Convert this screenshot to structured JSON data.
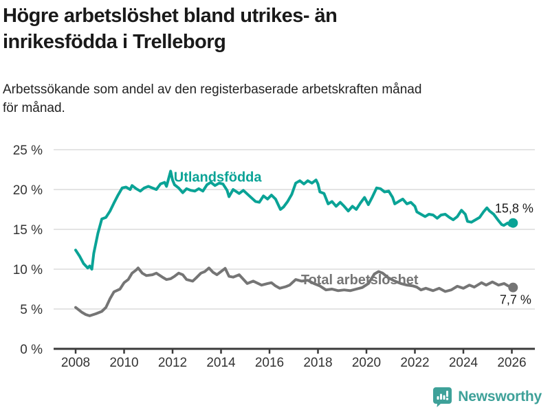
{
  "header": {
    "title_lines": [
      "Högre arbetslöshet bland utrikes- än",
      "inrikesfödda i Trelleborg"
    ],
    "subtitle_lines": [
      "Arbetssökande som andel av den registerbaserade arbetskraften månad",
      "för månad."
    ]
  },
  "footer": {
    "brand": "Newsworthy",
    "logo_icon": "bar-chart-speech-bubble"
  },
  "colors": {
    "foreign_born": "#0AA396",
    "total": "#757575",
    "grid": "#dcdcdc",
    "axis": "#3b3b3b",
    "tick_text": "#333333",
    "annotation_text": "#1a1a1a",
    "brand": "#3EA199"
  },
  "chart_data": {
    "type": "line",
    "title": "Högre arbetslöshet bland utrikes- än inrikesfödda i Trelleborg",
    "subtitle": "Arbetssökande som andel av den registerbaserade arbetskraften månad för månad.",
    "xlabel": "",
    "ylabel": "",
    "xlim": [
      2007.2,
      2026.9
    ],
    "ylim": [
      0,
      25
    ],
    "grid": "horizontal",
    "legend_position": "inline-labels",
    "y_ticks": [
      {
        "value": 25,
        "label": "25 %"
      },
      {
        "value": 20,
        "label": "20 %"
      },
      {
        "value": 15,
        "label": "15 %"
      },
      {
        "value": 10,
        "label": "10 %"
      },
      {
        "value": 5,
        "label": "5 %"
      },
      {
        "value": 0,
        "label": "0 %"
      }
    ],
    "x_ticks": [
      {
        "value": 2008,
        "label": "2008"
      },
      {
        "value": 2010,
        "label": "2010"
      },
      {
        "value": 2012,
        "label": "2012"
      },
      {
        "value": 2014,
        "label": "2014"
      },
      {
        "value": 2016,
        "label": "2016"
      },
      {
        "value": 2018,
        "label": "2018"
      },
      {
        "value": 2020,
        "label": "2020"
      },
      {
        "value": 2022,
        "label": "2022"
      },
      {
        "value": 2024,
        "label": "2024"
      },
      {
        "value": 2026,
        "label": "2026"
      }
    ],
    "series": [
      {
        "id": "utlandsfodda",
        "name": "Utlandsfödda",
        "color": "#0AA396",
        "end_value_label": "15,8 %",
        "points": [
          [
            2008.0,
            12.4
          ],
          [
            2008.17,
            11.6
          ],
          [
            2008.33,
            10.7
          ],
          [
            2008.5,
            10.15
          ],
          [
            2008.58,
            10.4
          ],
          [
            2008.67,
            10.0
          ],
          [
            2008.75,
            12.0
          ],
          [
            2008.92,
            14.5
          ],
          [
            2009.08,
            16.3
          ],
          [
            2009.25,
            16.5
          ],
          [
            2009.42,
            17.3
          ],
          [
            2009.58,
            18.3
          ],
          [
            2009.75,
            19.3
          ],
          [
            2009.92,
            20.2
          ],
          [
            2010.08,
            20.3
          ],
          [
            2010.25,
            20.0
          ],
          [
            2010.33,
            20.5
          ],
          [
            2010.5,
            20.1
          ],
          [
            2010.67,
            19.8
          ],
          [
            2010.83,
            20.2
          ],
          [
            2011.0,
            20.4
          ],
          [
            2011.17,
            20.2
          ],
          [
            2011.33,
            20.0
          ],
          [
            2011.5,
            20.7
          ],
          [
            2011.67,
            20.9
          ],
          [
            2011.75,
            20.4
          ],
          [
            2011.92,
            22.3
          ],
          [
            2012.0,
            21.2
          ],
          [
            2012.08,
            20.6
          ],
          [
            2012.25,
            20.2
          ],
          [
            2012.42,
            19.6
          ],
          [
            2012.58,
            20.1
          ],
          [
            2012.75,
            19.9
          ],
          [
            2012.92,
            19.8
          ],
          [
            2013.08,
            20.1
          ],
          [
            2013.25,
            19.8
          ],
          [
            2013.42,
            20.6
          ],
          [
            2013.58,
            20.9
          ],
          [
            2013.75,
            20.5
          ],
          [
            2013.92,
            20.8
          ],
          [
            2014.08,
            20.7
          ],
          [
            2014.25,
            19.9
          ],
          [
            2014.33,
            19.1
          ],
          [
            2014.5,
            20.0
          ],
          [
            2014.75,
            19.5
          ],
          [
            2014.92,
            19.9
          ],
          [
            2015.17,
            19.2
          ],
          [
            2015.42,
            18.5
          ],
          [
            2015.58,
            18.4
          ],
          [
            2015.75,
            19.2
          ],
          [
            2015.92,
            18.8
          ],
          [
            2016.08,
            19.3
          ],
          [
            2016.25,
            18.8
          ],
          [
            2016.45,
            17.5
          ],
          [
            2016.58,
            17.8
          ],
          [
            2016.75,
            18.5
          ],
          [
            2016.92,
            19.4
          ],
          [
            2017.08,
            20.8
          ],
          [
            2017.25,
            21.1
          ],
          [
            2017.42,
            20.7
          ],
          [
            2017.58,
            21.1
          ],
          [
            2017.75,
            20.8
          ],
          [
            2017.92,
            21.2
          ],
          [
            2018.0,
            20.7
          ],
          [
            2018.08,
            19.7
          ],
          [
            2018.25,
            19.5
          ],
          [
            2018.42,
            18.2
          ],
          [
            2018.58,
            18.5
          ],
          [
            2018.75,
            17.9
          ],
          [
            2018.92,
            18.4
          ],
          [
            2019.08,
            17.9
          ],
          [
            2019.25,
            17.3
          ],
          [
            2019.42,
            17.9
          ],
          [
            2019.58,
            17.5
          ],
          [
            2019.75,
            18.3
          ],
          [
            2019.92,
            19.0
          ],
          [
            2020.08,
            18.1
          ],
          [
            2020.25,
            19.1
          ],
          [
            2020.42,
            20.2
          ],
          [
            2020.58,
            20.1
          ],
          [
            2020.75,
            19.7
          ],
          [
            2020.92,
            19.8
          ],
          [
            2021.08,
            19.0
          ],
          [
            2021.17,
            18.2
          ],
          [
            2021.33,
            18.5
          ],
          [
            2021.5,
            18.8
          ],
          [
            2021.67,
            18.2
          ],
          [
            2021.83,
            18.4
          ],
          [
            2022.0,
            17.9
          ],
          [
            2022.08,
            17.2
          ],
          [
            2022.25,
            16.9
          ],
          [
            2022.42,
            16.6
          ],
          [
            2022.58,
            16.9
          ],
          [
            2022.75,
            16.8
          ],
          [
            2022.92,
            16.4
          ],
          [
            2023.08,
            16.8
          ],
          [
            2023.25,
            16.9
          ],
          [
            2023.42,
            16.5
          ],
          [
            2023.58,
            16.2
          ],
          [
            2023.75,
            16.6
          ],
          [
            2023.92,
            17.4
          ],
          [
            2024.08,
            16.9
          ],
          [
            2024.17,
            16.0
          ],
          [
            2024.33,
            15.9
          ],
          [
            2024.5,
            16.2
          ],
          [
            2024.67,
            16.5
          ],
          [
            2024.83,
            17.2
          ],
          [
            2024.97,
            17.7
          ],
          [
            2025.08,
            17.3
          ],
          [
            2025.25,
            16.9
          ],
          [
            2025.42,
            16.2
          ],
          [
            2025.58,
            15.6
          ],
          [
            2025.67,
            15.5
          ],
          [
            2025.83,
            15.8
          ],
          [
            2025.92,
            15.5
          ],
          [
            2026.05,
            15.8
          ]
        ]
      },
      {
        "id": "total",
        "name": "Total arbetslöshet",
        "color": "#757575",
        "end_value_label": "7,7 %",
        "points": [
          [
            2008.0,
            5.2
          ],
          [
            2008.25,
            4.6
          ],
          [
            2008.42,
            4.3
          ],
          [
            2008.58,
            4.15
          ],
          [
            2008.83,
            4.4
          ],
          [
            2009.08,
            4.7
          ],
          [
            2009.25,
            5.2
          ],
          [
            2009.42,
            6.3
          ],
          [
            2009.58,
            7.15
          ],
          [
            2009.83,
            7.5
          ],
          [
            2010.0,
            8.3
          ],
          [
            2010.17,
            8.7
          ],
          [
            2010.33,
            9.5
          ],
          [
            2010.5,
            9.9
          ],
          [
            2010.58,
            10.15
          ],
          [
            2010.75,
            9.5
          ],
          [
            2010.92,
            9.2
          ],
          [
            2011.17,
            9.3
          ],
          [
            2011.33,
            9.5
          ],
          [
            2011.58,
            9.0
          ],
          [
            2011.75,
            8.7
          ],
          [
            2011.92,
            8.8
          ],
          [
            2012.08,
            9.1
          ],
          [
            2012.25,
            9.5
          ],
          [
            2012.42,
            9.3
          ],
          [
            2012.58,
            8.7
          ],
          [
            2012.83,
            8.5
          ],
          [
            2012.97,
            8.9
          ],
          [
            2013.17,
            9.5
          ],
          [
            2013.33,
            9.7
          ],
          [
            2013.5,
            10.15
          ],
          [
            2013.67,
            9.6
          ],
          [
            2013.83,
            9.3
          ],
          [
            2014.0,
            9.7
          ],
          [
            2014.17,
            10.1
          ],
          [
            2014.33,
            9.1
          ],
          [
            2014.5,
            9.0
          ],
          [
            2014.75,
            9.3
          ],
          [
            2015.08,
            8.2
          ],
          [
            2015.33,
            8.5
          ],
          [
            2015.67,
            8.0
          ],
          [
            2015.92,
            8.2
          ],
          [
            2016.08,
            8.3
          ],
          [
            2016.25,
            7.9
          ],
          [
            2016.42,
            7.6
          ],
          [
            2016.67,
            7.8
          ],
          [
            2016.83,
            8.0
          ],
          [
            2017.08,
            8.7
          ],
          [
            2017.33,
            8.5
          ],
          [
            2017.58,
            8.6
          ],
          [
            2017.83,
            8.2
          ],
          [
            2018.08,
            7.9
          ],
          [
            2018.33,
            7.4
          ],
          [
            2018.58,
            7.5
          ],
          [
            2018.83,
            7.3
          ],
          [
            2019.08,
            7.4
          ],
          [
            2019.33,
            7.3
          ],
          [
            2019.58,
            7.5
          ],
          [
            2019.83,
            7.7
          ],
          [
            2020.08,
            8.2
          ],
          [
            2020.33,
            9.4
          ],
          [
            2020.5,
            9.7
          ],
          [
            2020.67,
            9.5
          ],
          [
            2020.92,
            8.9
          ],
          [
            2021.17,
            8.5
          ],
          [
            2021.42,
            8.2
          ],
          [
            2021.67,
            8.0
          ],
          [
            2021.92,
            7.9
          ],
          [
            2022.08,
            7.75
          ],
          [
            2022.25,
            7.4
          ],
          [
            2022.45,
            7.6
          ],
          [
            2022.75,
            7.3
          ],
          [
            2023.0,
            7.6
          ],
          [
            2023.25,
            7.2
          ],
          [
            2023.5,
            7.4
          ],
          [
            2023.75,
            7.85
          ],
          [
            2024.0,
            7.6
          ],
          [
            2024.25,
            8.0
          ],
          [
            2024.45,
            7.75
          ],
          [
            2024.75,
            8.3
          ],
          [
            2024.94,
            8.0
          ],
          [
            2025.2,
            8.4
          ],
          [
            2025.45,
            8.0
          ],
          [
            2025.68,
            8.2
          ],
          [
            2025.85,
            7.9
          ],
          [
            2026.05,
            7.7
          ]
        ]
      }
    ],
    "series_labels": [
      {
        "series": "utlandsfodda",
        "text": "Utlandsfödda",
        "year": 2012.05,
        "value": 21.0,
        "color": "#0AA396"
      },
      {
        "series": "total",
        "text": "Total arbetslöshet",
        "year": 2017.3,
        "value": 8.1,
        "color": "#757575"
      }
    ],
    "value_labels": [
      {
        "series": "utlandsfodda",
        "text": "15,8 %",
        "year": 2025.3,
        "value": 17.1,
        "color": "#1a1a1a"
      },
      {
        "series": "total",
        "text": "7,7 %",
        "year": 2025.5,
        "value": 5.65,
        "color": "#1a1a1a"
      }
    ]
  }
}
